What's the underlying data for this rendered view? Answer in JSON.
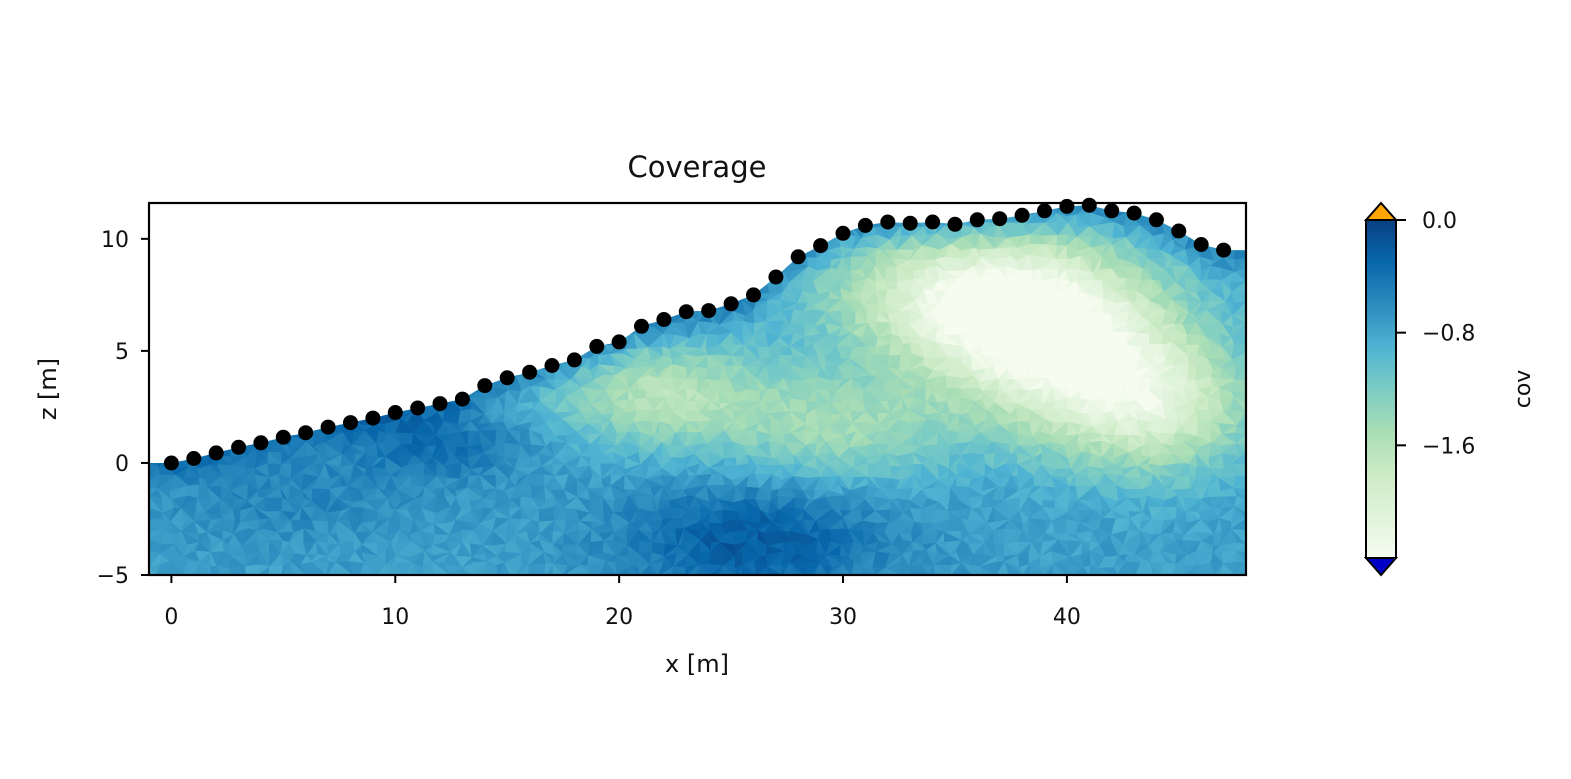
{
  "chart_data": {
    "type": "heatmap",
    "title": "Coverage",
    "xlabel": "x [m]",
    "ylabel": "z [m]",
    "xlim": [
      -1,
      48
    ],
    "ylim": [
      -5,
      11.6
    ],
    "x_ticks": [
      0,
      10,
      20,
      30,
      40
    ],
    "y_ticks": [
      -5,
      0,
      5,
      10
    ],
    "x_tick_labels": [
      "0",
      "10",
      "20",
      "30",
      "40"
    ],
    "y_tick_labels": [
      "−5",
      "0",
      "5",
      "10"
    ],
    "grid": false,
    "colormap": "GnBu_r",
    "colorbar": {
      "label": "cov",
      "range": [
        -2.4,
        0.0
      ],
      "ticks": [
        0.0,
        -0.8,
        -1.6
      ],
      "tick_labels": [
        "0.0",
        "−0.8",
        "−1.6"
      ],
      "extend_over_color": "#ffa500",
      "extend_under_color": "#0000c8"
    },
    "electrodes": {
      "marker_color": "#000000",
      "x": [
        0,
        1,
        2,
        3,
        4,
        5,
        6,
        7,
        8,
        9,
        10,
        11,
        12,
        13,
        14,
        15,
        16,
        17,
        18,
        19,
        20,
        21,
        22,
        23,
        24,
        25,
        26,
        27,
        28,
        29,
        30,
        31,
        32,
        33,
        34,
        35,
        36,
        37,
        38,
        39,
        40,
        41,
        42,
        43,
        44,
        45,
        46,
        47
      ],
      "z": [
        0.0,
        0.2,
        0.45,
        0.7,
        0.9,
        1.15,
        1.35,
        1.6,
        1.8,
        2.0,
        2.25,
        2.45,
        2.65,
        2.85,
        3.45,
        3.8,
        4.05,
        4.35,
        4.6,
        5.2,
        5.4,
        6.1,
        6.4,
        6.75,
        6.8,
        7.1,
        7.5,
        8.3,
        9.2,
        9.7,
        10.25,
        10.6,
        10.75,
        10.7,
        10.75,
        10.65,
        10.85,
        10.9,
        11.05,
        11.25,
        11.45,
        11.5,
        11.25,
        11.15,
        10.85,
        10.35,
        9.75,
        9.5
      ]
    },
    "coverage_blobs": [
      {
        "x": 39.5,
        "z": 5.5,
        "rx": 5.5,
        "rz": 3.8,
        "value": -2.3
      },
      {
        "x": 35.0,
        "z": 7.5,
        "rx": 6.0,
        "rz": 3.0,
        "value": -1.9
      },
      {
        "x": 22.0,
        "z": 3.0,
        "rx": 5.0,
        "rz": 2.4,
        "value": -1.6
      },
      {
        "x": 44.0,
        "z": 2.5,
        "rx": 4.5,
        "rz": 3.0,
        "value": -1.8
      },
      {
        "x": 30.0,
        "z": 1.5,
        "rx": 5.0,
        "rz": 2.5,
        "value": -1.4
      },
      {
        "x": 26.0,
        "z": -3.5,
        "rx": 6.0,
        "rz": 2.8,
        "value": -0.2
      },
      {
        "x": 5.0,
        "z": -1.5,
        "rx": 6.0,
        "rz": 2.0,
        "value": -0.55
      },
      {
        "x": 12.0,
        "z": 0.8,
        "rx": 4.0,
        "rz": 1.5,
        "value": -0.35
      }
    ],
    "default_value": -0.75
  }
}
